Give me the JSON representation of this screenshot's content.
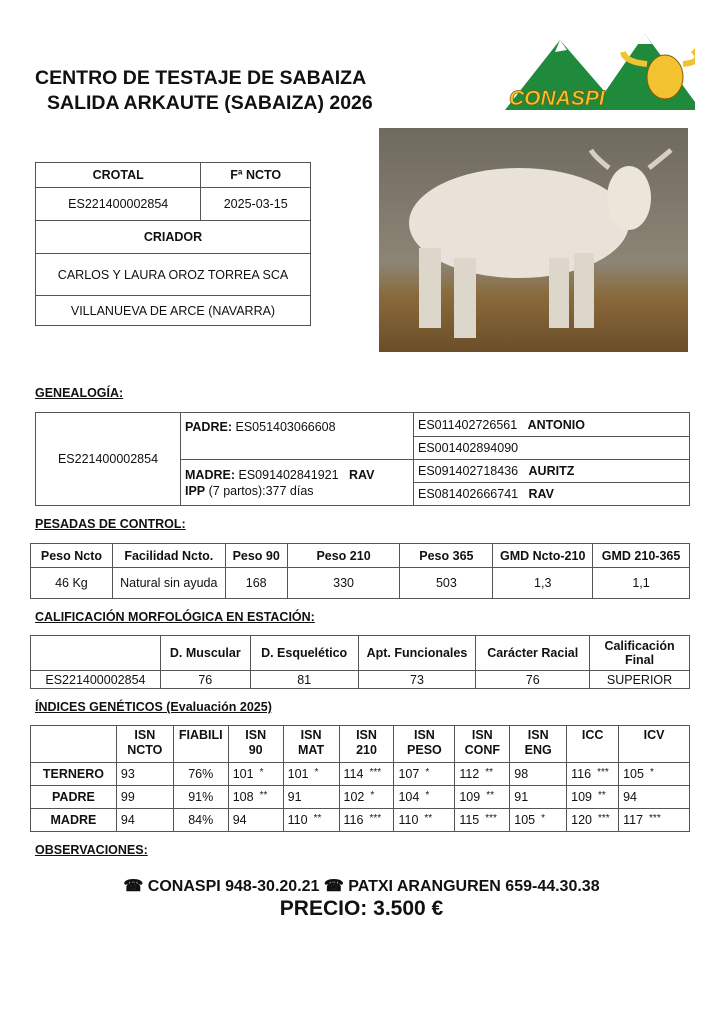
{
  "header": {
    "title_line1": "CENTRO DE TESTAJE DE SABAIZA",
    "title_line2": "SALIDA ARKAUTE (SABAIZA) 2026",
    "logo_text": "CONASPI"
  },
  "info": {
    "crotal_label": "CROTAL",
    "fncto_label": "Fª NCTO",
    "crotal": "ES221400002854",
    "fncto": "2025-03-15",
    "criador_label": "CRIADOR",
    "criador": "CARLOS Y LAURA OROZ TORREA SCA",
    "location": "VILLANUEVA DE ARCE (NAVARRA)"
  },
  "genealogia": {
    "label": "GENEALOGÍA:",
    "animal": "ES221400002854",
    "padre_label": "PADRE:",
    "padre": "ES051403066608",
    "madre_label": "MADRE:",
    "madre": "ES091402841921",
    "madre_name": "RAV",
    "ipp_label": "IPP",
    "ipp": "(7 partos):377 días",
    "grandparents": [
      {
        "id": "ES011402726561",
        "name": "ANTONIO"
      },
      {
        "id": "ES001402894090",
        "name": ""
      },
      {
        "id": "ES091402718436",
        "name": "AURITZ"
      },
      {
        "id": "ES081402666741",
        "name": "RAV"
      }
    ]
  },
  "pesadas": {
    "label": "PESADAS DE CONTROL:",
    "headers": [
      "Peso Ncto",
      "Facilidad Ncto.",
      "Peso 90",
      "Peso 210",
      "Peso 365",
      "GMD Ncto-210",
      "GMD 210-365"
    ],
    "values": [
      "46 Kg",
      "Natural sin ayuda",
      "168",
      "330",
      "503",
      "1,3",
      "1,1"
    ]
  },
  "calificacion": {
    "label": "CALIFICACIÓN MORFOLÓGICA EN ESTACIÓN:",
    "headers": [
      "",
      "D. Muscular",
      "D. Esquelético",
      "Apt. Funcionales",
      "Carácter Racial",
      "Calificación Final"
    ],
    "values": [
      "ES221400002854",
      "76",
      "81",
      "73",
      "76",
      "SUPERIOR"
    ]
  },
  "indices": {
    "label": "ÍNDICES GENÉTICOS (Evaluación 2025)",
    "headers": [
      "",
      "ISN NCTO",
      "FIABILI",
      "ISN 90",
      "ISN MAT",
      "ISN 210",
      "ISN PESO",
      "ISN CONF",
      "ISN ENG",
      "ICC",
      "ICV"
    ],
    "rows": [
      {
        "name": "TERNERO",
        "cells": [
          [
            "93",
            ""
          ],
          [
            "76%",
            ""
          ],
          [
            "101",
            "*"
          ],
          [
            "101",
            "*"
          ],
          [
            "114",
            "***"
          ],
          [
            "107",
            "*"
          ],
          [
            "112",
            "**"
          ],
          [
            "98",
            ""
          ],
          [
            "116",
            "***"
          ],
          [
            "105",
            "*"
          ]
        ]
      },
      {
        "name": "PADRE",
        "cells": [
          [
            "99",
            ""
          ],
          [
            "91%",
            ""
          ],
          [
            "108",
            "**"
          ],
          [
            "91",
            ""
          ],
          [
            "102",
            "*"
          ],
          [
            "104",
            "*"
          ],
          [
            "109",
            "**"
          ],
          [
            "91",
            ""
          ],
          [
            "109",
            "**"
          ],
          [
            "94",
            ""
          ]
        ]
      },
      {
        "name": "MADRE",
        "cells": [
          [
            "94",
            ""
          ],
          [
            "84%",
            ""
          ],
          [
            "94",
            ""
          ],
          [
            "110",
            "**"
          ],
          [
            "116",
            "***"
          ],
          [
            "110",
            "**"
          ],
          [
            "115",
            "***"
          ],
          [
            "105",
            "*"
          ],
          [
            "120",
            "***"
          ],
          [
            "117",
            "***"
          ]
        ]
      }
    ]
  },
  "observaciones": {
    "label": "OBSERVACIONES:"
  },
  "footer": {
    "contact": "☎ CONASPI 948-30.20.21  ☎ PATXI ARANGUREN 659-44.30.38",
    "price": "PRECIO: 3.500 €"
  },
  "colors": {
    "logo_green": "#1f8a3c",
    "logo_yellow": "#f2c230"
  }
}
